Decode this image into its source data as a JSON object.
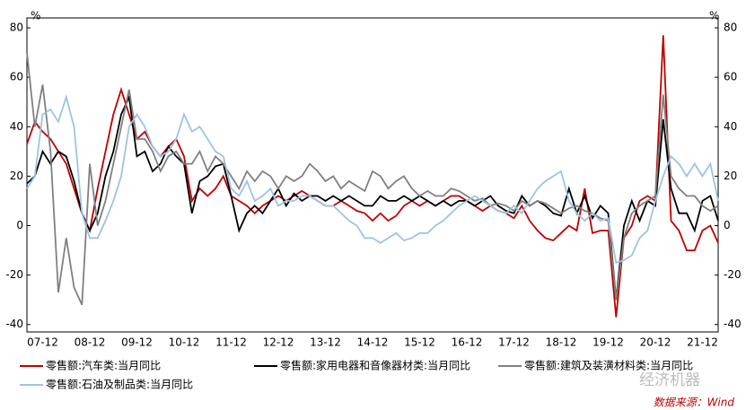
{
  "chart_data": {
    "type": "line",
    "y_unit": "%",
    "y2_unit": "%",
    "categories": [
      null,
      null,
      "07-12",
      null,
      null,
      null,
      null,
      null,
      "08-12",
      null,
      null,
      null,
      null,
      null,
      "09-12",
      null,
      null,
      null,
      null,
      null,
      "10-12",
      null,
      null,
      null,
      null,
      null,
      "11-12",
      null,
      null,
      null,
      null,
      null,
      "12-12",
      null,
      null,
      null,
      null,
      null,
      "13-12",
      null,
      null,
      null,
      null,
      null,
      "14-12",
      null,
      null,
      null,
      null,
      null,
      "15-12",
      null,
      null,
      null,
      null,
      null,
      "16-12",
      null,
      null,
      null,
      null,
      null,
      "17-12",
      null,
      null,
      null,
      null,
      null,
      "18-12",
      null,
      null,
      null,
      null,
      null,
      "19-12",
      null,
      null,
      null,
      null,
      null,
      "20-12",
      null,
      null,
      null,
      null,
      null,
      "21-12",
      null,
      null
    ],
    "series": [
      {
        "name": "零售额:汽车类:当月同比",
        "color": "#c00000",
        "values": [
          33,
          42,
          38,
          35,
          30,
          25,
          15,
          5,
          -2,
          15,
          30,
          45,
          55,
          45,
          35,
          38,
          32,
          28,
          32,
          35,
          28,
          10,
          15,
          12,
          15,
          20,
          12,
          10,
          8,
          5,
          8,
          10,
          12,
          10,
          12,
          14,
          12,
          10,
          8,
          8,
          10,
          8,
          6,
          5,
          2,
          5,
          2,
          4,
          8,
          10,
          8,
          10,
          8,
          10,
          12,
          12,
          10,
          8,
          6,
          8,
          6,
          5,
          3,
          8,
          2,
          -2,
          -5,
          -6,
          -3,
          0,
          -2,
          15,
          -3,
          -2,
          -2,
          -37,
          -5,
          0,
          10,
          12,
          10,
          77,
          2,
          -2,
          -10,
          -10,
          -2,
          0,
          -7
        ]
      },
      {
        "name": "零售额:家用电器和音像器材类:当月同比",
        "color": "#000000",
        "values": [
          17,
          20,
          30,
          25,
          30,
          28,
          18,
          5,
          -2,
          5,
          20,
          30,
          45,
          52,
          28,
          30,
          22,
          25,
          32,
          28,
          25,
          5,
          18,
          20,
          24,
          25,
          12,
          -2,
          5,
          8,
          5,
          10,
          15,
          8,
          13,
          10,
          12,
          12,
          10,
          12,
          10,
          12,
          10,
          8,
          8,
          12,
          10,
          10,
          12,
          10,
          12,
          10,
          8,
          10,
          8,
          10,
          10,
          8,
          10,
          12,
          8,
          6,
          5,
          12,
          8,
          10,
          8,
          5,
          4,
          15,
          5,
          12,
          3,
          8,
          5,
          -30,
          0,
          10,
          2,
          10,
          8,
          43,
          15,
          5,
          5,
          -2,
          10,
          12,
          2
        ]
      },
      {
        "name": "零售额:建筑及装潢材料类:当月同比",
        "color": "#808080",
        "values": [
          70,
          40,
          57,
          30,
          -27,
          -5,
          -25,
          -32,
          25,
          0,
          10,
          25,
          40,
          55,
          35,
          35,
          30,
          22,
          28,
          30,
          25,
          25,
          30,
          22,
          28,
          25,
          20,
          15,
          22,
          18,
          22,
          20,
          15,
          20,
          18,
          20,
          25,
          22,
          18,
          20,
          15,
          18,
          16,
          14,
          22,
          20,
          15,
          18,
          20,
          15,
          12,
          14,
          12,
          12,
          15,
          14,
          12,
          10,
          11,
          8,
          9,
          8,
          6,
          10,
          8,
          10,
          9,
          7,
          5,
          7,
          8,
          6,
          5,
          3,
          2,
          -30,
          -5,
          5,
          8,
          10,
          12,
          53,
          20,
          15,
          12,
          12,
          8,
          6,
          8
        ]
      },
      {
        "name": "零售额:石油及制品类:当月同比",
        "color": "#9dc3e6",
        "values": [
          15,
          20,
          45,
          47,
          42,
          52,
          40,
          5,
          -5,
          -5,
          2,
          10,
          20,
          40,
          45,
          40,
          32,
          28,
          30,
          35,
          45,
          38,
          40,
          35,
          30,
          28,
          15,
          12,
          18,
          10,
          12,
          15,
          8,
          10,
          10,
          12,
          12,
          10,
          8,
          8,
          5,
          2,
          0,
          -5,
          -5,
          -7,
          -5,
          -3,
          -6,
          -5,
          -3,
          -3,
          0,
          2,
          5,
          8,
          10,
          12,
          10,
          8,
          6,
          5,
          8,
          5,
          10,
          15,
          18,
          20,
          22,
          10,
          5,
          2,
          5,
          2,
          3,
          -15,
          -14,
          -12,
          -5,
          -2,
          10,
          20,
          28,
          25,
          20,
          25,
          20,
          25,
          10
        ]
      }
    ],
    "ylim": [
      -43,
      84
    ],
    "yticks": [
      -40,
      -20,
      0,
      20,
      40,
      60,
      80
    ],
    "y2lim": [
      -43,
      84
    ],
    "y2ticks": [
      -40,
      -20,
      0,
      20,
      40,
      60,
      80
    ],
    "grid": false,
    "source": "数据来源：Wind",
    "watermark": "经济机器"
  }
}
